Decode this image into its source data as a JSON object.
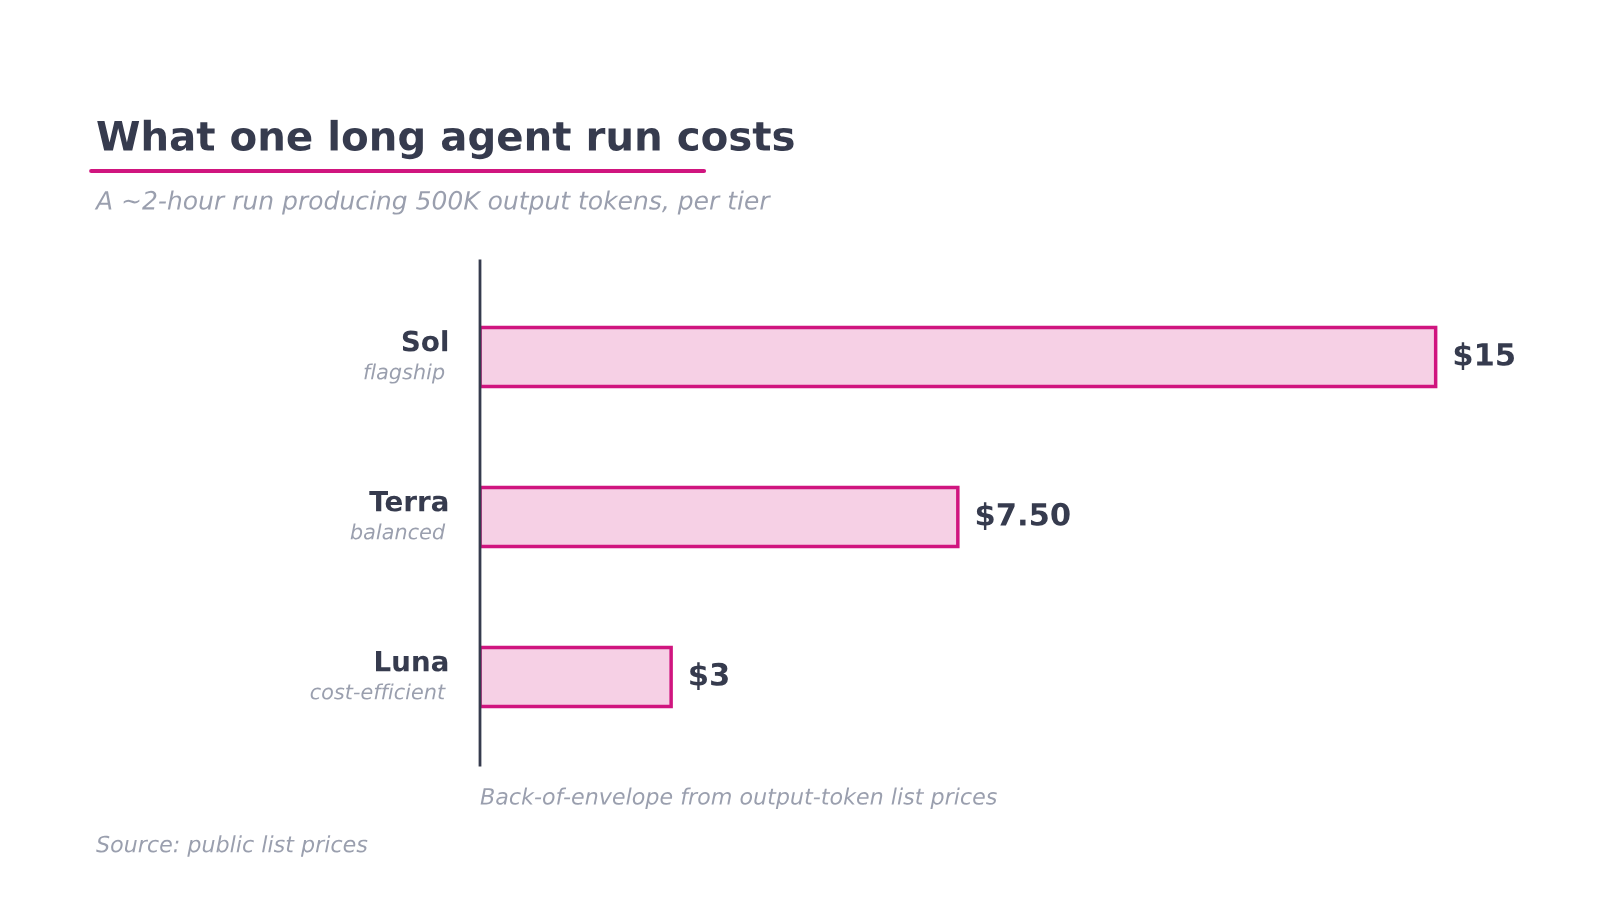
{
  "chart_data": {
    "type": "bar",
    "orientation": "horizontal",
    "title": "What one long agent run costs",
    "subtitle": "A ~2-hour run producing 500K output tokens, per tier",
    "categories": [
      "Sol\nflagship",
      "Terra\nbalanced",
      "Luna\ncost-efficient"
    ],
    "values": [
      15,
      7.5,
      3
    ],
    "value_labels": [
      "$15",
      "$7.50",
      "$3"
    ],
    "color": "#d0157f",
    "tick_labels": "y",
    "grid": false,
    "legend": false,
    "annotations": [
      "Back-of-envelope from output-token list prices",
      "Source: public list prices"
    ]
  }
}
